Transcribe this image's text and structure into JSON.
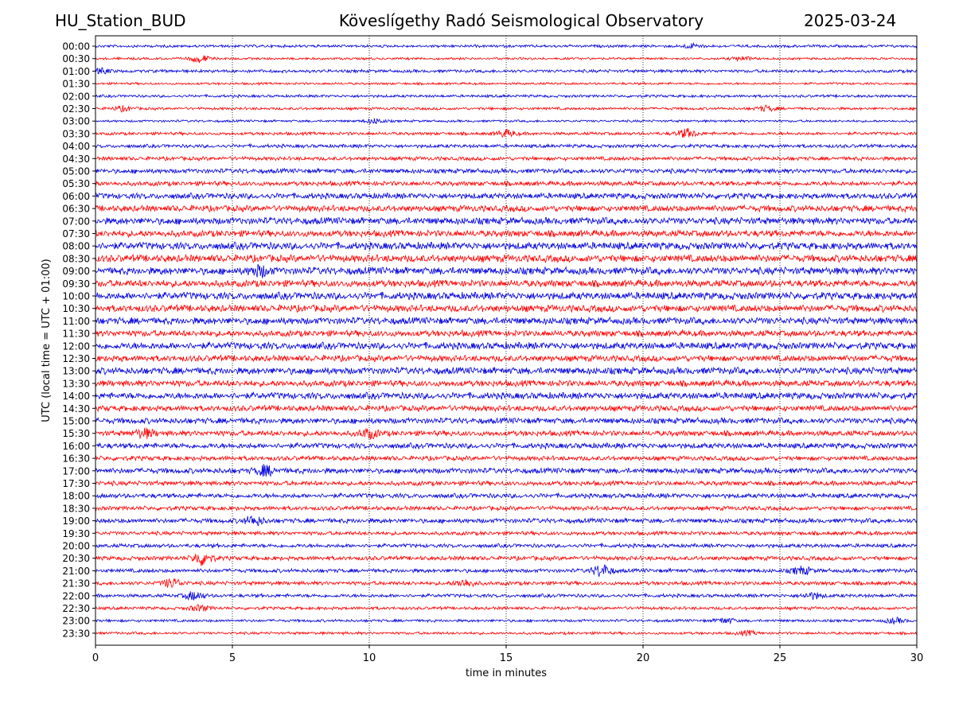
{
  "header": {
    "station": "HU_Station_BUD",
    "observatory": "Köveslígethy Radó Seismological Observatory",
    "date": "2025-03-24"
  },
  "chart_data": {
    "type": "line",
    "title": "Köveslígethy Radó Seismological Observatory",
    "xlabel": "time in minutes",
    "ylabel": "UTC (local time = UTC + 01:00)",
    "xlim": [
      0,
      30
    ],
    "xticks": [
      0,
      5,
      10,
      15,
      20,
      25,
      30
    ],
    "grid": "vertical dotted at each x tick",
    "row_labels": [
      "00:00",
      "00:30",
      "01:00",
      "01:30",
      "02:00",
      "02:30",
      "03:00",
      "03:30",
      "04:00",
      "04:30",
      "05:00",
      "05:30",
      "06:00",
      "06:30",
      "07:00",
      "07:30",
      "08:00",
      "08:30",
      "09:00",
      "09:30",
      "10:00",
      "10:30",
      "11:00",
      "11:30",
      "12:00",
      "12:30",
      "13:00",
      "13:30",
      "14:00",
      "14:30",
      "15:00",
      "15:30",
      "16:00",
      "16:30",
      "17:00",
      "17:30",
      "18:00",
      "18:30",
      "19:00",
      "19:30",
      "20:00",
      "20:30",
      "21:00",
      "21:30",
      "22:00",
      "22:30",
      "23:00",
      "23:30"
    ],
    "colors": [
      "#0000dd",
      "#ff0000"
    ],
    "amplitude": [
      0.35,
      0.3,
      0.4,
      0.3,
      0.35,
      0.35,
      0.3,
      0.4,
      0.45,
      0.5,
      0.6,
      0.6,
      0.75,
      0.8,
      0.9,
      0.85,
      0.95,
      0.95,
      0.95,
      0.9,
      0.95,
      0.9,
      0.9,
      0.8,
      0.9,
      0.8,
      0.9,
      0.8,
      0.85,
      0.75,
      0.75,
      0.7,
      0.7,
      0.6,
      0.7,
      0.6,
      0.6,
      0.55,
      0.6,
      0.5,
      0.5,
      0.55,
      0.5,
      0.5,
      0.45,
      0.4,
      0.35,
      0.35
    ],
    "events": [
      {
        "row": "00:00",
        "minute": 21.8,
        "strength": 1.6
      },
      {
        "row": "00:30",
        "minute": 3.8,
        "strength": 3.5
      },
      {
        "row": "00:30",
        "minute": 23.6,
        "strength": 1.8
      },
      {
        "row": "01:00",
        "minute": 0.2,
        "strength": 1.6
      },
      {
        "row": "02:30",
        "minute": 1.0,
        "strength": 1.8
      },
      {
        "row": "02:30",
        "minute": 24.5,
        "strength": 2.0
      },
      {
        "row": "03:00",
        "minute": 10.2,
        "strength": 2.2
      },
      {
        "row": "03:30",
        "minute": 15.0,
        "strength": 2.3
      },
      {
        "row": "03:30",
        "minute": 21.6,
        "strength": 3.0
      },
      {
        "row": "09:00",
        "minute": 6.0,
        "strength": 1.4
      },
      {
        "row": "15:30",
        "minute": 1.8,
        "strength": 1.6
      },
      {
        "row": "15:30",
        "minute": 10.0,
        "strength": 1.6
      },
      {
        "row": "17:00",
        "minute": 6.2,
        "strength": 1.8
      },
      {
        "row": "19:00",
        "minute": 5.8,
        "strength": 2.0
      },
      {
        "row": "20:30",
        "minute": 3.9,
        "strength": 3.4
      },
      {
        "row": "21:00",
        "minute": 18.5,
        "strength": 3.2
      },
      {
        "row": "21:00",
        "minute": 25.8,
        "strength": 2.0
      },
      {
        "row": "21:30",
        "minute": 2.8,
        "strength": 2.4
      },
      {
        "row": "21:30",
        "minute": 13.5,
        "strength": 2.0
      },
      {
        "row": "22:00",
        "minute": 3.6,
        "strength": 2.4
      },
      {
        "row": "22:00",
        "minute": 26.2,
        "strength": 1.8
      },
      {
        "row": "22:30",
        "minute": 3.8,
        "strength": 2.0
      },
      {
        "row": "23:00",
        "minute": 23.0,
        "strength": 2.0
      },
      {
        "row": "23:00",
        "minute": 29.2,
        "strength": 2.0
      },
      {
        "row": "23:30",
        "minute": 23.8,
        "strength": 1.6
      }
    ]
  }
}
